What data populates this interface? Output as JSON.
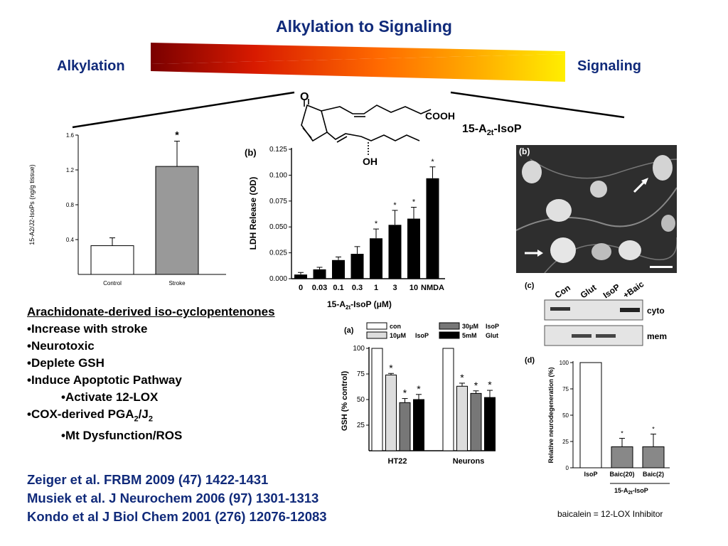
{
  "title": "Alkylation to Signaling",
  "gradient": {
    "left_label": "Alkylation",
    "right_label": "Signaling",
    "colors": [
      "#7a0000",
      "#d81a00",
      "#ff6a00",
      "#ffb000",
      "#ffee00"
    ]
  },
  "molecule": {
    "label_main": "15-A",
    "label_sub": "2t",
    "label_suffix": "-IsoP",
    "carbonyl": "O",
    "acid": "COOH",
    "hydroxyl": "OH"
  },
  "chart_data": [
    {
      "type": "bar",
      "categories": [
        "Control",
        "Stroke"
      ],
      "values": [
        0.33,
        1.24
      ],
      "errors": [
        0.09,
        0.29
      ],
      "significance": [
        "",
        "*"
      ],
      "ylabel": "15-A2/J2-IsoPs (ng/g tissue)",
      "yticks": [
        "0.4",
        "0.8",
        "1.2",
        "1.6"
      ],
      "ylim": [
        0,
        1.6
      ],
      "colors": [
        "#ffffff",
        "#999999"
      ]
    },
    {
      "type": "bar",
      "panel": "(b)",
      "categories": [
        "0",
        "0.03",
        "0.1",
        "0.3",
        "1",
        "3",
        "10",
        "NMDA"
      ],
      "values": [
        0.004,
        0.009,
        0.018,
        0.024,
        0.039,
        0.052,
        0.058,
        0.097
      ],
      "errors": [
        0.002,
        0.002,
        0.003,
        0.007,
        0.009,
        0.014,
        0.011,
        0.011
      ],
      "significance": [
        "",
        "",
        "",
        "",
        "*",
        "*",
        "*",
        "*"
      ],
      "xlabel_main": "15-A",
      "xlabel_sub": "2t",
      "xlabel_suffix": "-IsoP (μM)",
      "ylabel": "LDH Release (OD)",
      "yticks": [
        "0.000",
        "0.025",
        "0.050",
        "0.075",
        "0.100",
        "0.125"
      ],
      "ylim": [
        0,
        0.125
      ]
    },
    {
      "type": "bar",
      "panel": "(a)",
      "groups": [
        "HT22",
        "Neurons"
      ],
      "series": [
        {
          "name": "con",
          "values": [
            100,
            100
          ],
          "errors": [
            0,
            0
          ],
          "significance": [
            "",
            ""
          ]
        },
        {
          "name": "10μM IsoP",
          "values": [
            74,
            63
          ],
          "errors": [
            1.5,
            3
          ],
          "significance": [
            "*",
            "*"
          ]
        },
        {
          "name": "30μM IsoP",
          "values": [
            47,
            56
          ],
          "errors": [
            4,
            2.5
          ],
          "significance": [
            "*",
            "*"
          ]
        },
        {
          "name": "5mM Glut",
          "values": [
            50,
            52
          ],
          "errors": [
            5,
            7
          ],
          "significance": [
            "*",
            "*"
          ]
        }
      ],
      "legend_labels": [
        "con",
        "10μM",
        "IsoP",
        "30μM",
        "IsoP",
        "5mM",
        "Glut"
      ],
      "ylabel": "GSH (% control)",
      "yticks": [
        "25",
        "50",
        "75",
        "100"
      ],
      "ylim": [
        0,
        100
      ]
    },
    {
      "type": "bar",
      "panel": "(d)",
      "categories": [
        "IsoP",
        "Baic(20)",
        "Baic(2)"
      ],
      "values": [
        100,
        20,
        20
      ],
      "errors": [
        0,
        8,
        12
      ],
      "significance": [
        "",
        "*",
        "*"
      ],
      "ylabel": "Relative neurodegeneration (%)",
      "yticks": [
        "0",
        "25",
        "50",
        "75",
        "100"
      ],
      "ylim": [
        0,
        100
      ],
      "group_label_main": "15-A",
      "group_label_sub": "2t",
      "group_label_suffix": "-IsoP"
    }
  ],
  "panel_b_image": {
    "label": "(b)"
  },
  "panel_c": {
    "label": "(c)",
    "lanes": [
      "Con",
      "Glut",
      "IsoP",
      "+Baic"
    ],
    "rows": [
      "cyto",
      "mem"
    ]
  },
  "bullets": {
    "heading": "Arachidonate-derived iso-cyclopentenones",
    "items": [
      {
        "text": "•Increase with stroke"
      },
      {
        "text": "•Neurotoxic"
      },
      {
        "text": "•Deplete  GSH"
      },
      {
        "text": "•Induce Apoptotic Pathway"
      },
      {
        "text": "•Activate 12-LOX"
      },
      {
        "text": "•COX-derived PGA",
        "sub1": "2",
        "mid": "/J",
        "sub2": "2"
      },
      {
        "text": "•Mt Dysfunction/ROS"
      }
    ]
  },
  "references": [
    "Zeiger et al. FRBM 2009 (47) 1422-1431",
    "Musiek et al. J Neurochem  2006 (97) 1301-1313",
    "Kondo et al J Biol Chem  2001 (276) 12076-12083"
  ],
  "footnote": "baicalein  = 12-LOX Inhibitor"
}
